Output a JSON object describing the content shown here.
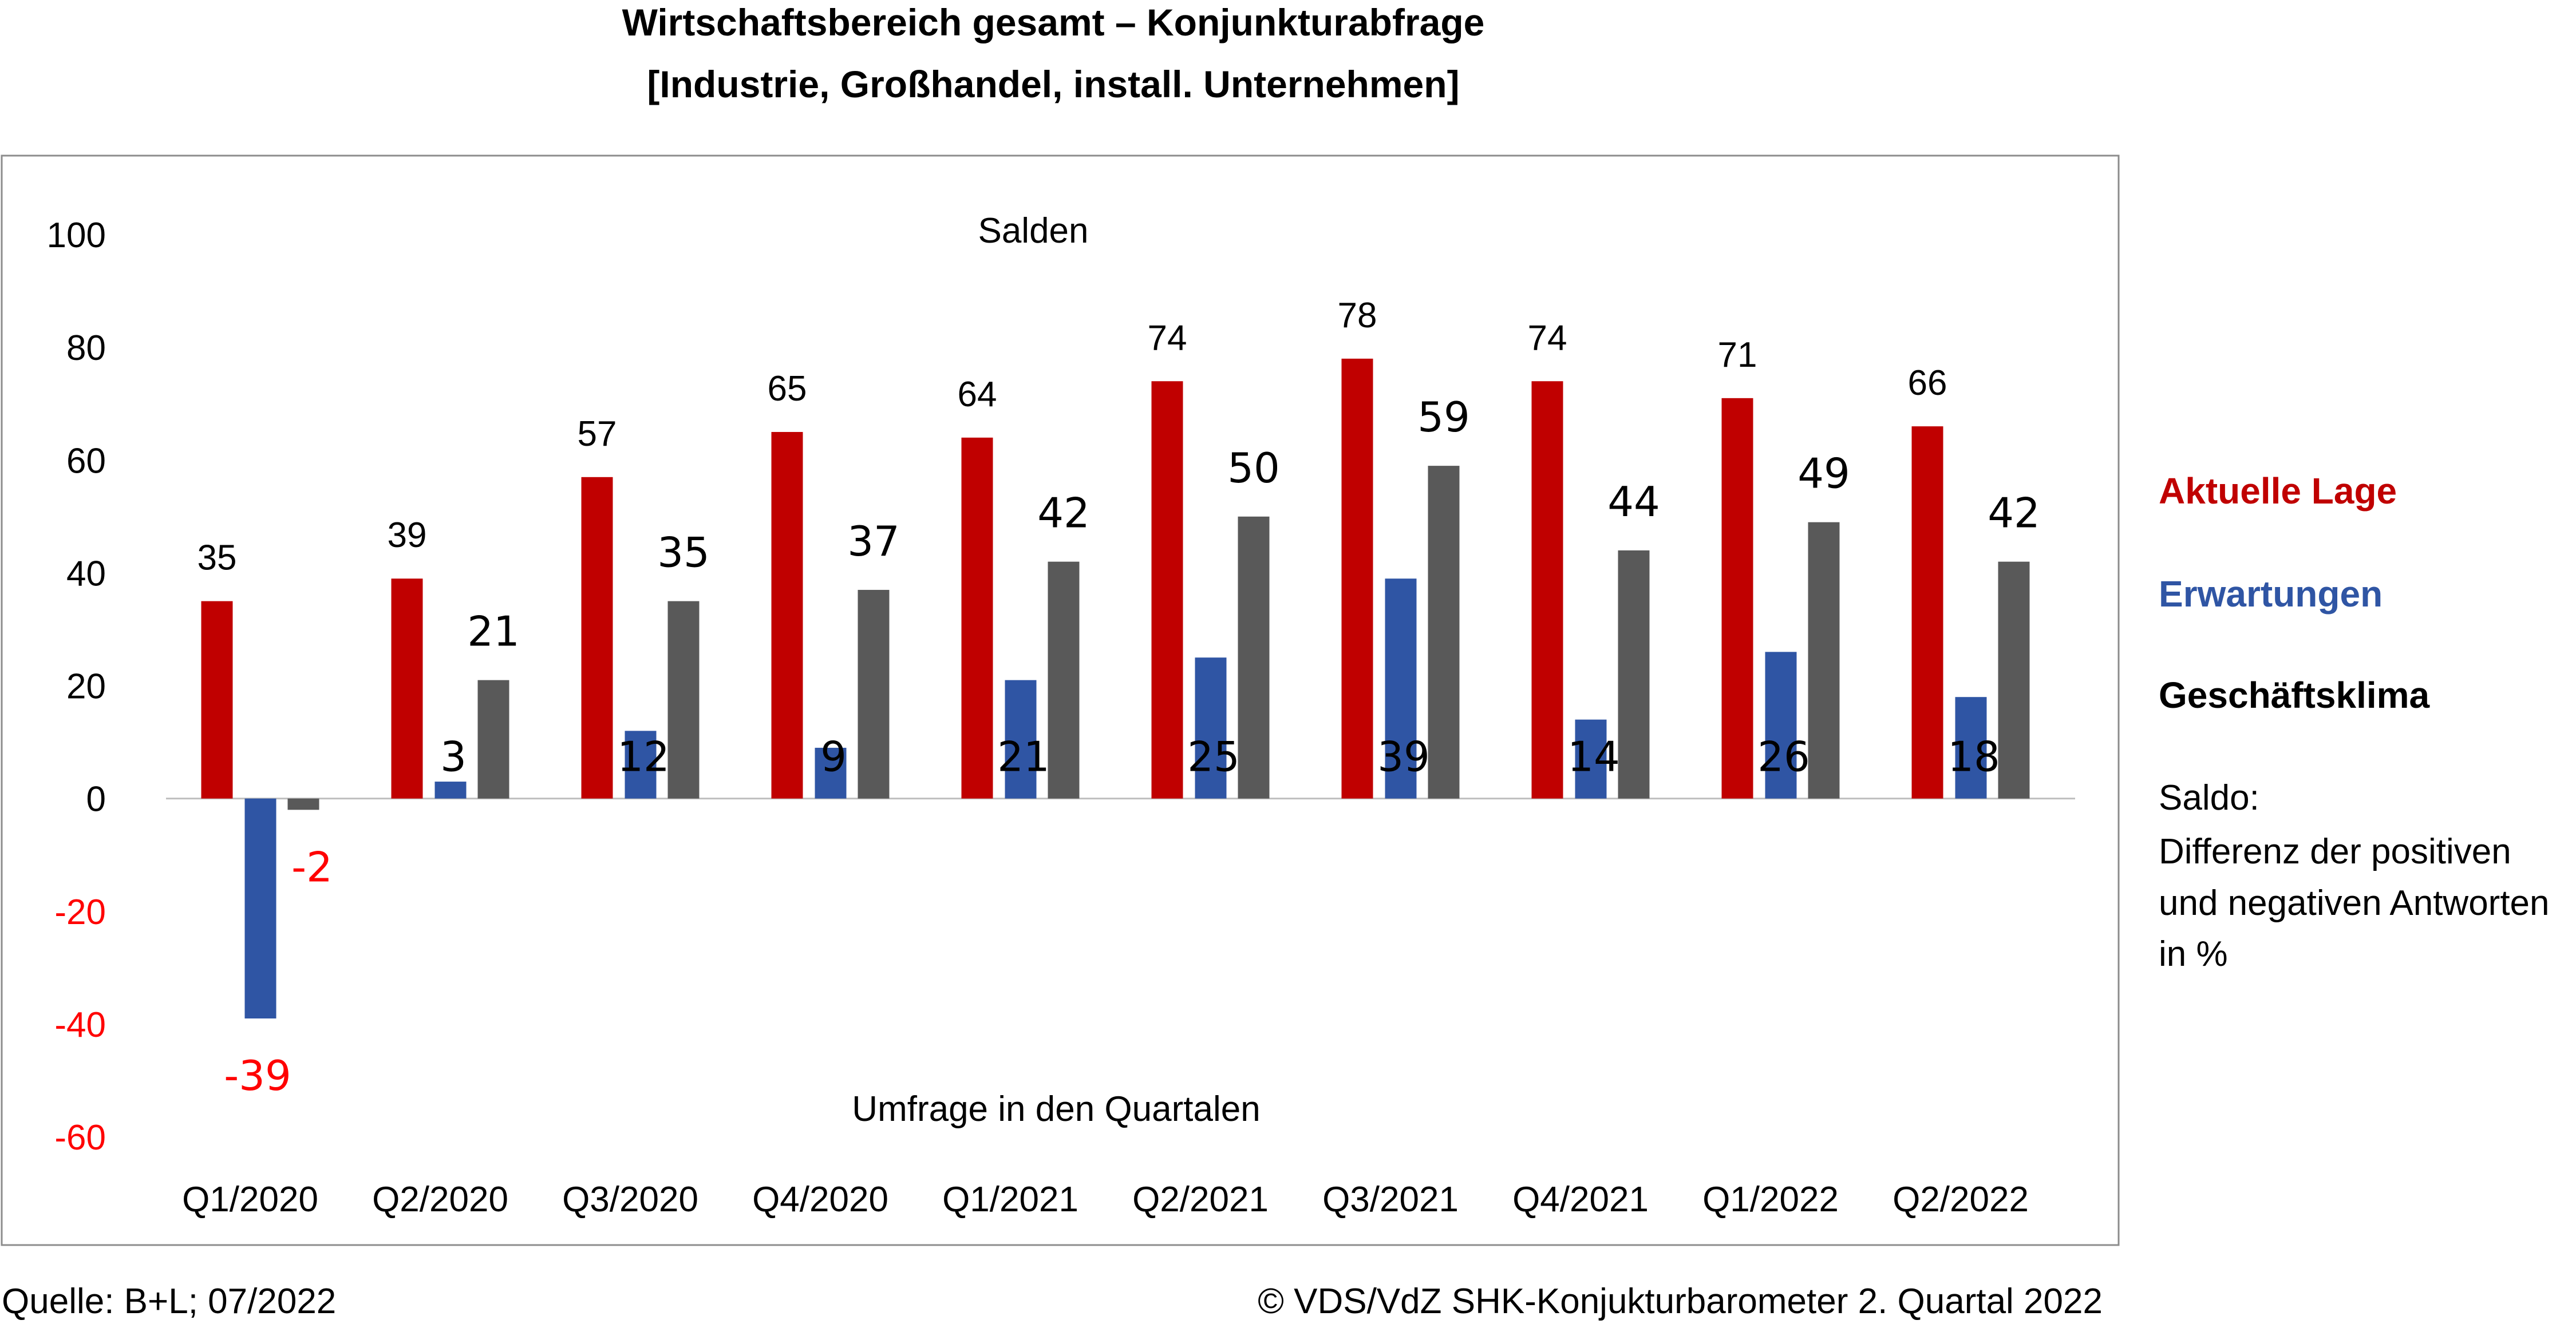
{
  "title": {
    "line1": "Wirtschaftsbereich gesamt – Konjunkturabfrage",
    "line2": "[Industrie, Großhandel, install. Unternehmen]"
  },
  "footer": {
    "source": "Quelle: B+L; 07/2022",
    "copyright": "© VDS/VdZ SHK-Konjukturbarometer 2. Quartal 2022"
  },
  "note": {
    "line1": "Saldo:",
    "line2": "Differenz der positiven",
    "line3": "und negativen Antworten",
    "line4": "in %"
  },
  "colors": {
    "aktuelle_lage": "#C00000",
    "erwartungen": "#2F55A4",
    "geschaeftsklima": "#595959",
    "negative_label": "#FF0000",
    "legend_klima_text": "#000000"
  },
  "chart_data": {
    "type": "bar",
    "subtitle": "Salden",
    "xlabel": "Umfrage in den Quartalen",
    "ylabel": "",
    "ylim": [
      -60,
      100
    ],
    "yticks": [
      "100",
      "80",
      "60",
      "40",
      "20",
      "0",
      "-20",
      "-40",
      "-60"
    ],
    "grid": false,
    "legend_position": "right",
    "categories": [
      "Q1/2020",
      "Q2/2020",
      "Q3/2020",
      "Q4/2020",
      "Q1/2021",
      "Q2/2021",
      "Q3/2021",
      "Q4/2021",
      "Q1/2022",
      "Q2/2022"
    ],
    "series": [
      {
        "name": "Aktuelle Lage",
        "values": [
          35,
          39,
          57,
          65,
          64,
          74,
          78,
          74,
          71,
          66
        ]
      },
      {
        "name": "Erwartungen",
        "values": [
          -39,
          3,
          12,
          9,
          21,
          25,
          39,
          14,
          26,
          18
        ]
      },
      {
        "name": "Geschäftsklima",
        "values": [
          -2,
          21,
          35,
          37,
          42,
          50,
          59,
          44,
          49,
          42
        ]
      }
    ]
  }
}
